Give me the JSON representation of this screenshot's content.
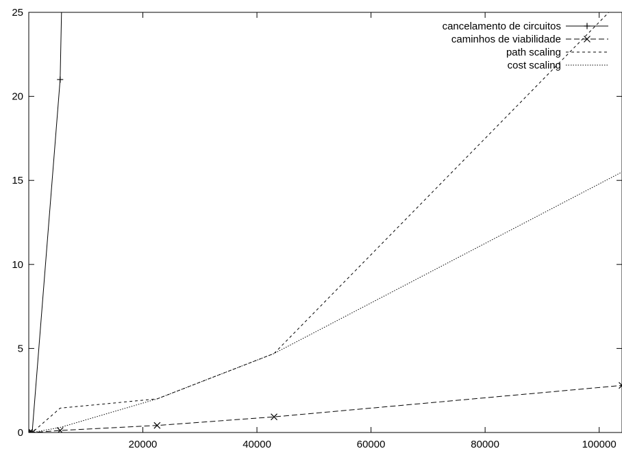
{
  "chart_data": {
    "type": "line",
    "title": "",
    "xlabel": "",
    "ylabel": "",
    "xlim": [
      0,
      104000
    ],
    "ylim": [
      0,
      25
    ],
    "grid": false,
    "legend_position": "top-right",
    "x_ticks": [
      20000,
      40000,
      60000,
      80000,
      100000
    ],
    "x_tick_labels": [
      "20000",
      "40000",
      "60000",
      "80000",
      "100000"
    ],
    "y_ticks": [
      0,
      5,
      10,
      15,
      20,
      25
    ],
    "y_tick_labels": [
      "0",
      "5",
      "10",
      "15",
      "20",
      "25"
    ],
    "series": [
      {
        "name": "cancelamento de circuitos",
        "dash": "solid",
        "marker": "plus",
        "x": [
          100,
          600,
          5500,
          5800
        ],
        "y": [
          0.0,
          0.02,
          21.0,
          26.0
        ]
      },
      {
        "name": "caminhos de viabilidade",
        "dash": "dashed",
        "marker": "cross",
        "x": [
          100,
          600,
          5500,
          22500,
          43000,
          104000
        ],
        "y": [
          0.0,
          0.0,
          0.12,
          0.42,
          0.93,
          2.8
        ]
      },
      {
        "name": "path scaling",
        "dash": "short-dashed",
        "marker": "none",
        "x": [
          100,
          600,
          5500,
          22500,
          43000,
          104000
        ],
        "y": [
          0.0,
          0.0,
          1.45,
          2.0,
          4.7,
          25.8
        ]
      },
      {
        "name": "cost scaling",
        "dash": "dotted",
        "marker": "none",
        "x": [
          100,
          600,
          5500,
          22500,
          43000,
          104000
        ],
        "y": [
          0.0,
          0.0,
          0.3,
          2.0,
          4.7,
          15.5
        ]
      }
    ]
  }
}
